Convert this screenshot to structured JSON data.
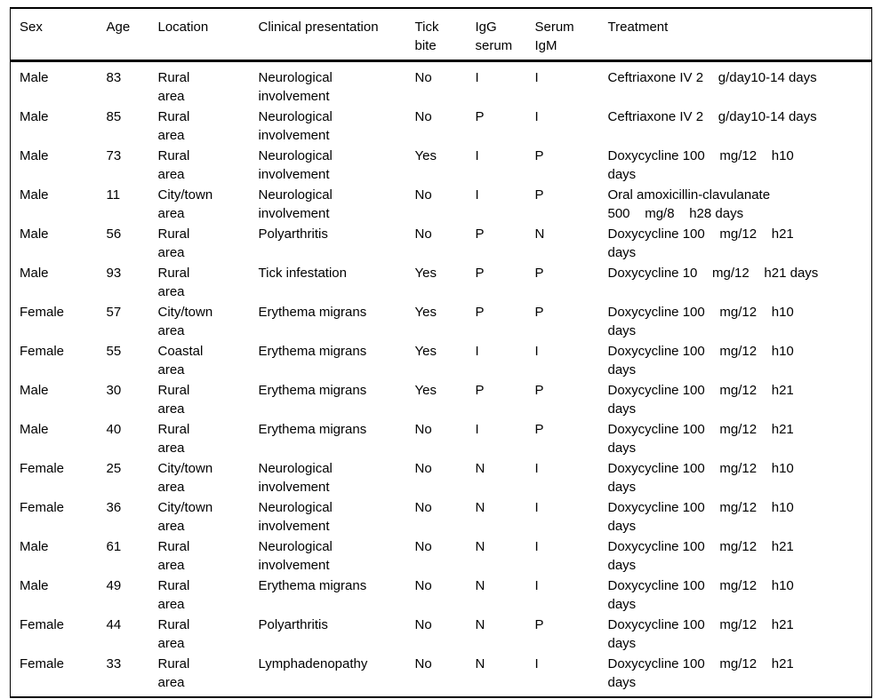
{
  "table": {
    "columns": [
      {
        "key": "sex",
        "label": "Sex"
      },
      {
        "key": "age",
        "label": "Age"
      },
      {
        "key": "location",
        "label": "Location"
      },
      {
        "key": "clinical_presentation",
        "label": "Clinical presentation"
      },
      {
        "key": "tick_bite",
        "label": "Tick\nbite"
      },
      {
        "key": "igg_serum",
        "label": "IgG\nserum"
      },
      {
        "key": "serum_igm",
        "label": "Serum\nIgM"
      },
      {
        "key": "treatment",
        "label": "Treatment"
      }
    ],
    "rows": [
      [
        "Male",
        "83",
        "Rural\narea",
        "Neurological\ninvolvement",
        "No",
        "I",
        "I",
        "Ceftriaxone IV 2    g/day10-14 days"
      ],
      [
        "Male",
        "85",
        "Rural\narea",
        "Neurological\ninvolvement",
        "No",
        "P",
        "I",
        "Ceftriaxone IV 2    g/day10-14 days"
      ],
      [
        "Male",
        "73",
        "Rural\narea",
        "Neurological\ninvolvement",
        "Yes",
        "I",
        "P",
        "Doxycycline 100    mg/12    h10\ndays"
      ],
      [
        "Male",
        "11",
        "City/town\narea",
        "Neurological\ninvolvement",
        "No",
        "I",
        "P",
        "Oral amoxicillin-clavulanate\n500    mg/8    h28 days"
      ],
      [
        "Male",
        "56",
        "Rural\narea",
        "Polyarthritis",
        "No",
        "P",
        "N",
        "Doxycycline 100    mg/12    h21\ndays"
      ],
      [
        "Male",
        "93",
        "Rural\narea",
        "Tick infestation",
        "Yes",
        "P",
        "P",
        "Doxycycline 10    mg/12    h21 days"
      ],
      [
        "Female",
        "57",
        "City/town\narea",
        "Erythema migrans",
        "Yes",
        "P",
        "P",
        "Doxycycline 100    mg/12    h10\ndays"
      ],
      [
        "Female",
        "55",
        "Coastal\narea",
        "Erythema migrans",
        "Yes",
        "I",
        "I",
        "Doxycycline 100    mg/12    h10\ndays"
      ],
      [
        "Male",
        "30",
        "Rural\narea",
        "Erythema migrans",
        "Yes",
        "P",
        "P",
        "Doxycycline 100    mg/12    h21\ndays"
      ],
      [
        "Male",
        "40",
        "Rural\narea",
        "Erythema migrans",
        "No",
        "I",
        "P",
        "Doxycycline 100    mg/12    h21\ndays"
      ],
      [
        "Female",
        "25",
        "City/town\narea",
        "Neurological\ninvolvement",
        "No",
        "N",
        "I",
        "Doxycycline 100    mg/12    h10\ndays"
      ],
      [
        "Female",
        "36",
        "City/town\narea",
        "Neurological\ninvolvement",
        "No",
        "N",
        "I",
        "Doxycycline 100    mg/12    h10\ndays"
      ],
      [
        "Male",
        "61",
        "Rural\narea",
        "Neurological\ninvolvement",
        "No",
        "N",
        "I",
        "Doxycycline 100    mg/12    h21\ndays"
      ],
      [
        "Male",
        "49",
        "Rural\narea",
        "Erythema migrans",
        "No",
        "N",
        "I",
        "Doxycycline 100    mg/12    h10\ndays"
      ],
      [
        "Female",
        "44",
        "Rural\narea",
        "Polyarthritis",
        "No",
        "N",
        "P",
        "Doxycycline 100    mg/12    h21\ndays"
      ],
      [
        "Female",
        "33",
        "Rural\narea",
        "Lymphadenopathy",
        "No",
        "N",
        "I",
        "Doxycycline 100    mg/12    h21\ndays"
      ]
    ]
  }
}
